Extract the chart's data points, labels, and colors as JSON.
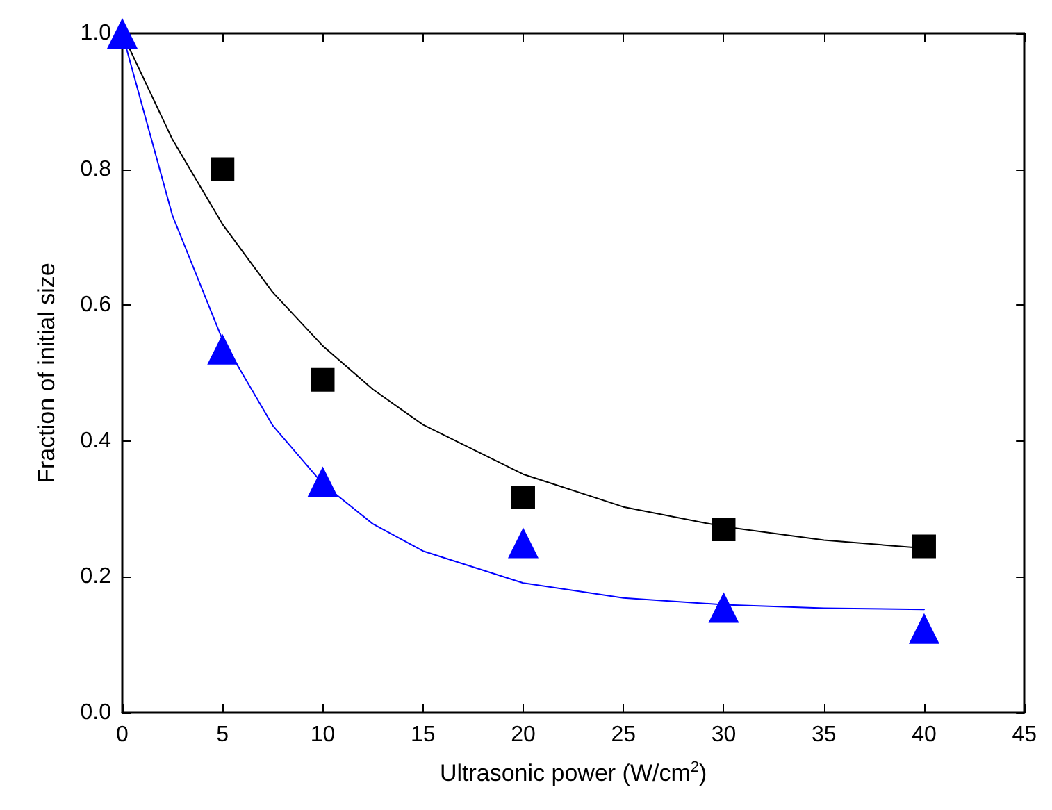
{
  "chart_data": {
    "type": "scatter",
    "xlabel": "Ultrasonic power (W/cm$^{2}$)",
    "ylabel": "Fraction of initial size",
    "xlim": [
      0,
      45
    ],
    "xticks": [
      0,
      5,
      10,
      15,
      20,
      25,
      30,
      35,
      40,
      45
    ],
    "ylim": [
      0,
      1
    ],
    "yticks": [
      {
        "value": 0,
        "label": "0.0"
      },
      {
        "value": 0.2,
        "label": "0.2"
      },
      {
        "value": 0.4,
        "label": "0.4"
      },
      {
        "value": 0.6,
        "label": "0.6"
      },
      {
        "value": 0.8,
        "label": "0.8"
      },
      {
        "value": 1,
        "label": "1.0"
      }
    ],
    "grid": false,
    "series": [
      {
        "type": "line",
        "marker": "none",
        "color": "#000000",
        "x": [
          0,
          2.5,
          5,
          7.5,
          10,
          12.5,
          15,
          20,
          25,
          30,
          35,
          40
        ],
        "values": [
          1.0,
          0.844,
          0.719,
          0.619,
          0.54,
          0.476,
          0.424,
          0.351,
          0.303,
          0.274,
          0.254,
          0.242
        ]
      },
      {
        "type": "line",
        "marker": "none",
        "color": "#0000ff",
        "x": [
          0,
          2.5,
          5,
          7.5,
          10,
          12.5,
          15,
          20,
          25,
          30,
          35,
          40
        ],
        "values": [
          1.0,
          0.732,
          0.549,
          0.423,
          0.337,
          0.278,
          0.238,
          0.191,
          0.169,
          0.159,
          0.154,
          0.152
        ]
      },
      {
        "marker": "square",
        "color": "#000000",
        "x": [
          5,
          10,
          20,
          30,
          40
        ],
        "values": [
          0.8,
          0.49,
          0.317,
          0.27,
          0.245
        ]
      },
      {
        "marker": "triangle",
        "color": "#0000ff",
        "x": [
          0,
          5,
          10,
          20,
          30,
          40
        ],
        "values": [
          1.0,
          0.535,
          0.34,
          0.25,
          0.155,
          0.124
        ]
      }
    ]
  }
}
